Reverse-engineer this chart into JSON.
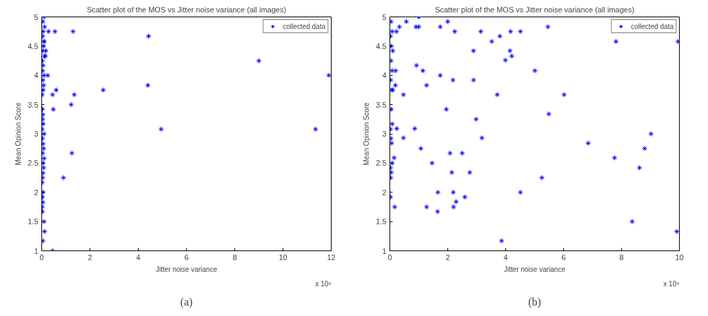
{
  "chart_data": [
    {
      "type": "scatter",
      "title": "Scatter plot of the MOS vs Jitter noise variance (all images)",
      "xlabel": "Jitter noise variance",
      "ylabel": "Mean Opinion Score",
      "annotations": [
        "x 10⁶",
        "(a)"
      ],
      "marker": "cross",
      "legend": "top right",
      "grid": false,
      "xlim": [
        0,
        12
      ],
      "xticks": [
        0,
        2,
        4,
        6,
        8,
        10,
        12
      ],
      "ylim": [
        1,
        5
      ],
      "yticks": [
        1,
        1.5,
        2,
        2.5,
        3,
        3.5,
        4,
        4.5,
        5
      ],
      "series": [
        {
          "name": "collected data",
          "color": "#0000ff",
          "x": [
            0.45,
            0.9,
            1.25,
            1.22,
            0.48,
            0.45,
            0.6,
            1.35,
            2.55,
            4.4,
            4.95,
            4.43,
            1.3,
            0.55,
            0.28,
            0.25,
            9.0,
            11.35,
            11.9,
            0.1,
            0.12,
            0.05,
            0.17,
            0.15,
            0.1,
            0.03,
            0.02,
            0.05,
            0.03,
            0.06,
            0.02,
            0.04,
            0.05,
            0.08,
            0.06,
            0.1,
            0.04,
            0.08,
            0.05,
            0.03,
            0.1,
            0.02,
            0.06,
            0.04,
            0.05,
            0.03,
            0.02,
            0.06,
            0.08,
            0.05,
            0.1,
            0.04,
            0.06,
            0.03,
            0.12,
            0.05,
            0.08,
            0.1,
            0.04,
            0.06,
            0.12,
            0.05,
            0.1
          ],
          "values": [
            1.0,
            2.25,
            2.67,
            3.5,
            3.42,
            3.67,
            3.75,
            3.67,
            3.75,
            3.83,
            3.08,
            4.67,
            4.75,
            4.75,
            4.75,
            4.0,
            4.25,
            3.08,
            4.0,
            1.5,
            1.33,
            1.17,
            4.42,
            4.33,
            4.58,
            1.67,
            1.75,
            1.83,
            1.92,
            2.0,
            2.17,
            2.25,
            2.33,
            2.42,
            2.5,
            2.58,
            2.67,
            2.75,
            2.83,
            2.92,
            3.0,
            3.08,
            3.17,
            3.25,
            3.33,
            3.42,
            3.67,
            3.75,
            3.83,
            3.92,
            4.0,
            4.08,
            4.17,
            4.25,
            4.33,
            4.42,
            4.5,
            4.58,
            4.67,
            4.75,
            4.83,
            4.92,
            5.0
          ]
        }
      ]
    },
    {
      "type": "scatter",
      "title": "Scatter plot of the MOS vs Jitter noise variance (all images)",
      "xlabel": "Jitter noise variance",
      "ylabel": "Mean Opinion Score",
      "annotations": [
        "x 10⁴",
        "(b)"
      ],
      "marker": "cross",
      "legend": "top right",
      "grid": false,
      "xlim": [
        0,
        10
      ],
      "xticks": [
        0,
        2,
        4,
        6,
        8,
        10
      ],
      "ylim": [
        1,
        5
      ],
      "yticks": [
        1,
        1.5,
        2,
        2.5,
        3,
        3.5,
        4,
        4.5,
        5
      ],
      "series": [
        {
          "name": "collected data",
          "color": "#0000ff",
          "x": [
            1.0,
            2.0,
            0.57,
            1.0,
            0.9,
            1.74,
            0.33,
            2.24,
            3.14,
            0.23,
            3.52,
            3.8,
            4.17,
            4.51,
            2.89,
            4.15,
            4.21,
            3.99,
            0.92,
            1.14,
            0.2,
            1.74,
            2.18,
            2.89,
            1.27,
            0.19,
            0.47,
            3.71,
            1.95,
            2.98,
            0.86,
            0.24,
            3.18,
            0.47,
            1.07,
            2.08,
            2.5,
            1.46,
            2.14,
            2.76,
            1.66,
            2.19,
            4.51,
            2.59,
            2.29,
            2.2,
            1.27,
            0.17,
            1.65,
            3.86,
            5.46,
            7.81,
            9.95,
            5.01,
            6.02,
            5.49,
            6.85,
            9.02,
            8.8,
            7.76,
            8.62,
            5.25,
            8.37,
            9.91,
            0.02,
            0.15,
            0.08,
            0.03,
            0.05,
            0.02,
            0.04,
            0.06,
            0.08,
            0.02,
            0.05,
            0.1,
            0.03,
            0.06,
            0.08,
            0.04,
            0.1,
            0.05,
            0.02,
            0.08,
            0.04
          ],
          "values": [
            5.0,
            4.92,
            4.92,
            4.83,
            4.83,
            4.83,
            4.83,
            4.75,
            4.75,
            4.75,
            4.58,
            4.67,
            4.75,
            4.75,
            4.42,
            4.42,
            4.33,
            4.26,
            4.17,
            4.08,
            4.08,
            4.0,
            3.92,
            3.92,
            3.83,
            3.83,
            3.67,
            3.67,
            3.42,
            3.25,
            3.09,
            3.09,
            2.93,
            2.93,
            2.75,
            2.67,
            2.67,
            2.5,
            2.34,
            2.34,
            2.0,
            2.0,
            2.0,
            1.92,
            1.84,
            1.75,
            1.75,
            1.75,
            1.67,
            1.17,
            4.83,
            4.58,
            4.58,
            4.08,
            3.67,
            3.34,
            2.84,
            3.0,
            2.75,
            2.59,
            2.42,
            2.25,
            1.5,
            1.33,
            1.92,
            2.59,
            2.5,
            2.25,
            2.34,
            2.42,
            2.92,
            2.84,
            3.17,
            3.08,
            3.42,
            3.75,
            3.92,
            3.75,
            4.08,
            4.25,
            4.42,
            4.5,
            4.67,
            4.75,
            4.92
          ]
        }
      ]
    }
  ]
}
